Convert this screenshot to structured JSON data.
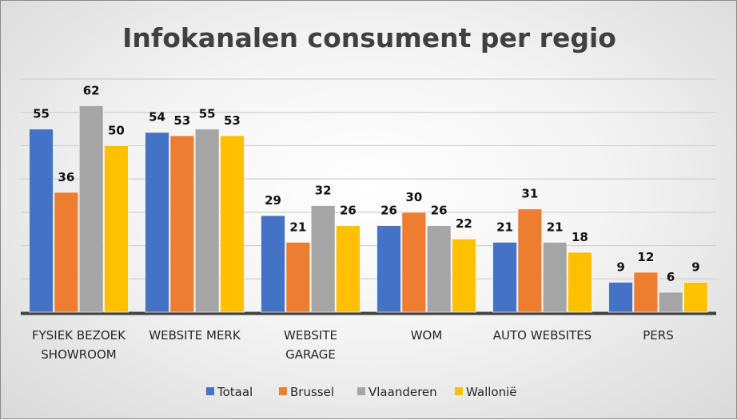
{
  "chart_data": {
    "type": "bar",
    "title": "Infokanalen consument per regio",
    "categories": [
      "FYSIEK BEZOEK SHOWROOM",
      "WEBSITE MERK",
      "WEBSITE GARAGE",
      "WOM",
      "AUTO WEBSITES",
      "PERS"
    ],
    "category_lines": [
      [
        "FYSIEK BEZOEK",
        "SHOWROOM"
      ],
      [
        "WEBSITE MERK"
      ],
      [
        "WEBSITE",
        "GARAGE"
      ],
      [
        "WOM"
      ],
      [
        "AUTO WEBSITES"
      ],
      [
        "PERS"
      ]
    ],
    "series": [
      {
        "name": "Totaal",
        "color": "#4472C4",
        "values": [
          55,
          54,
          29,
          26,
          21,
          9
        ]
      },
      {
        "name": "Brussel",
        "color": "#ED7D31",
        "values": [
          36,
          53,
          21,
          30,
          31,
          12
        ]
      },
      {
        "name": "Vlaanderen",
        "color": "#A5A5A5",
        "values": [
          62,
          55,
          32,
          26,
          21,
          6
        ]
      },
      {
        "name": "Wallonië",
        "color": "#FFC000",
        "values": [
          50,
          53,
          26,
          22,
          18,
          9
        ]
      }
    ],
    "ylim": [
      0,
      70
    ],
    "ytick_step": 10,
    "y_axis_labels_shown": false,
    "grid": true,
    "data_labels": true,
    "legend": "bottom",
    "xlabel": "",
    "ylabel": ""
  }
}
